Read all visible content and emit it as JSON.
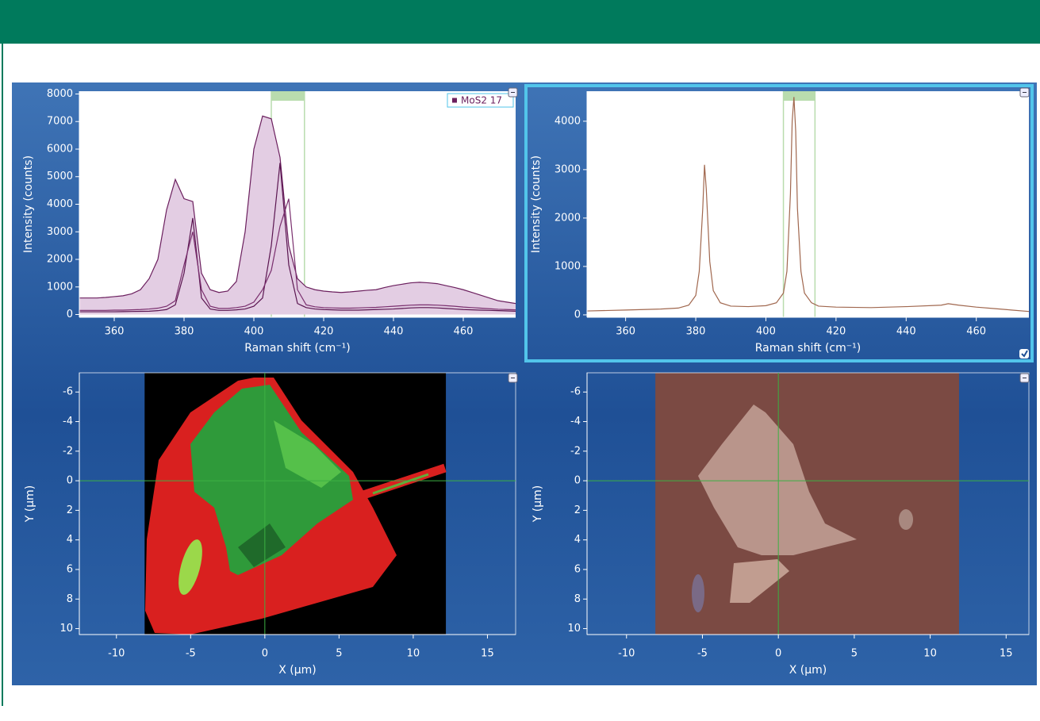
{
  "chart_data": [
    {
      "type": "spectrum",
      "x_label": "Raman shift (cm⁻¹)",
      "y_label": "Intensity (counts)",
      "x": [
        350,
        352.5,
        355,
        357.5,
        360,
        362.5,
        365,
        367.5,
        370,
        372.5,
        375,
        377.5,
        380,
        382.5,
        385,
        387.5,
        390,
        392.5,
        395,
        397.5,
        400,
        402.5,
        405,
        407.5,
        410,
        412.5,
        415,
        417.5,
        420,
        422.5,
        425,
        427.5,
        430,
        432.5,
        435,
        437.5,
        440,
        442.5,
        445,
        447.5,
        450,
        452.5,
        455,
        457.5,
        460,
        462.5,
        465,
        467.5,
        470,
        472.5,
        475
      ],
      "series": [
        {
          "name": "MoS2 17",
          "color": "#6b1f5e",
          "fill": "#e3cde3",
          "values": [
            600,
            600,
            600,
            620,
            650,
            680,
            750,
            900,
            1300,
            2000,
            3800,
            4900,
            4200,
            4100,
            1500,
            900,
            800,
            850,
            1200,
            3000,
            6000,
            7200,
            7100,
            5700,
            2500,
            1300,
            1000,
            900,
            850,
            820,
            800,
            820,
            850,
            880,
            900,
            980,
            1050,
            1100,
            1150,
            1170,
            1150,
            1120,
            1050,
            980,
            900,
            800,
            700,
            600,
            500,
            450,
            400
          ]
        },
        {
          "color": "#5a1550",
          "values": [
            100,
            100,
            100,
            100,
            100,
            105,
            110,
            115,
            120,
            140,
            180,
            350,
            1500,
            3500,
            600,
            200,
            150,
            150,
            170,
            200,
            300,
            600,
            2500,
            5500,
            1800,
            400,
            250,
            200,
            180,
            170,
            160,
            160,
            160,
            170,
            180,
            190,
            200,
            220,
            240,
            250,
            250,
            240,
            220,
            200,
            180,
            170,
            160,
            150,
            140,
            130,
            120
          ]
        },
        {
          "color": "#7a2f6e",
          "values": [
            150,
            150,
            150,
            150,
            160,
            160,
            170,
            180,
            200,
            230,
            300,
            500,
            1800,
            3000,
            900,
            300,
            220,
            220,
            250,
            300,
            450,
            900,
            1600,
            3200,
            4200,
            900,
            350,
            280,
            250,
            240,
            230,
            230,
            240,
            250,
            260,
            280,
            300,
            320,
            340,
            350,
            350,
            340,
            320,
            300,
            270,
            250,
            230,
            210,
            190,
            180,
            170
          ]
        }
      ],
      "xlim": [
        350,
        475
      ],
      "xticks": [
        360,
        380,
        400,
        420,
        440,
        460
      ],
      "ylim": [
        -100,
        8100
      ],
      "yticks": [
        0,
        1000,
        2000,
        3000,
        4000,
        5000,
        6000,
        7000,
        8000
      ],
      "highlight_range": [
        405,
        414.5
      ],
      "highlight_color": "#b9dcae",
      "legend": "top-right"
    },
    {
      "type": "spectrum",
      "x_label": "Raman shift (cm⁻¹)",
      "y_label": "Intensity (counts)",
      "x": [
        349,
        355,
        360,
        365,
        370,
        375,
        378,
        380,
        381,
        382,
        382.5,
        383,
        384,
        385,
        387,
        390,
        395,
        400,
        403,
        405,
        406,
        407,
        407.5,
        408,
        408.5,
        409,
        410,
        411,
        413,
        415,
        420,
        430,
        440,
        450,
        452,
        455,
        460,
        465,
        470,
        475
      ],
      "series": [
        {
          "color": "#a0674e",
          "values": [
            80,
            90,
            100,
            110,
            120,
            140,
            200,
            400,
            900,
            2200,
            3100,
            2600,
            1100,
            500,
            250,
            180,
            170,
            190,
            250,
            450,
            900,
            2500,
            4000,
            4500,
            3800,
            2200,
            900,
            450,
            250,
            180,
            160,
            150,
            170,
            200,
            230,
            200,
            160,
            130,
            100,
            70
          ]
        }
      ],
      "xlim": [
        349,
        475
      ],
      "xticks": [
        360,
        380,
        400,
        420,
        440,
        460
      ],
      "ylim": [
        -50,
        4620
      ],
      "yticks": [
        0,
        1000,
        2000,
        3000,
        4000
      ],
      "highlight_range": [
        405,
        414
      ],
      "highlight_color": "#b9dcae"
    },
    {
      "type": "map",
      "x_label": "X (µm)",
      "y_label": "Y (µm)",
      "xlim": [
        -12.5,
        16.9
      ],
      "xticks": [
        -10,
        -5,
        0,
        5,
        10,
        15
      ],
      "ylim": [
        -7.3,
        10.4
      ],
      "yticks": [
        -6,
        -4,
        -2,
        0,
        2,
        4,
        6,
        8,
        10
      ],
      "y_inverted": true,
      "extent_x": [
        -8.1,
        12.2
      ],
      "image_color": "#000000",
      "crosshair": [
        0,
        0
      ],
      "crosshair_color": "#3cb043"
    },
    {
      "type": "map",
      "x_label": "X (µm)",
      "y_label": "Y (µm)",
      "xlim": [
        -12.6,
        16.5
      ],
      "xticks": [
        -10,
        -5,
        0,
        5,
        10,
        15
      ],
      "ylim": [
        -7.3,
        10.4
      ],
      "yticks": [
        -6,
        -4,
        -2,
        0,
        2,
        4,
        6,
        8,
        10
      ],
      "y_inverted": true,
      "extent_x": [
        -8.1,
        11.9
      ],
      "image_color": "#7b4a43",
      "crosshair": [
        0,
        0
      ],
      "crosshair_color": "#3cb043"
    }
  ]
}
